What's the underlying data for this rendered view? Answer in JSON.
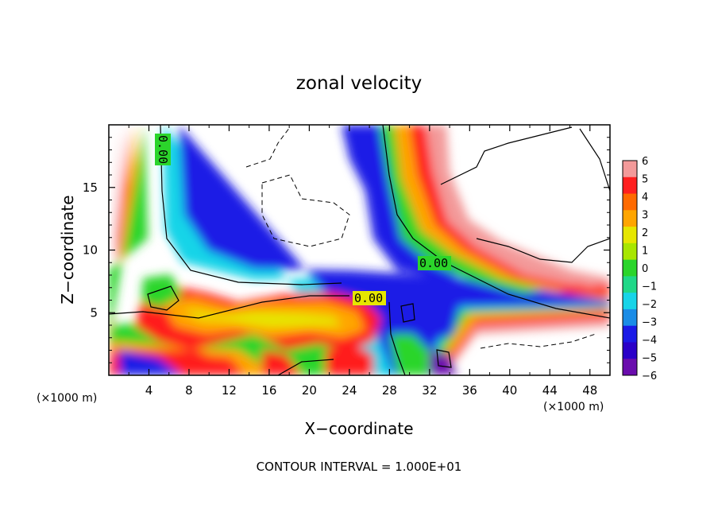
{
  "chart_data": {
    "type": "heatmap",
    "title": "zonal velocity",
    "xlabel": "X−coordinate",
    "ylabel": "Z−coordinate",
    "x_unit": "(×1000 m)",
    "y_unit": "(×1000 m)",
    "xlim": [
      0,
      50
    ],
    "ylim": [
      0,
      20
    ],
    "x_ticks": [
      "4",
      "8",
      "12",
      "16",
      "20",
      "24",
      "28",
      "32",
      "36",
      "40",
      "44",
      "48"
    ],
    "y_ticks": [
      "5",
      "10",
      "15"
    ],
    "colorbar": {
      "ticks": [
        "6",
        "5",
        "4",
        "3",
        "2",
        "1",
        "0",
        "−1",
        "−2",
        "−3",
        "−4",
        "−5",
        "−6"
      ],
      "range": [
        -6,
        6
      ],
      "position": "right"
    },
    "contour_labels": [
      "0.00",
      "0.00",
      "0.00"
    ],
    "footer": "CONTOUR INTERVAL = 1.000E+01",
    "grid": false,
    "colors": {
      "purple": "#6a0dad",
      "blue": "#1a1ae6",
      "cyan": "#17d4e8",
      "green": "#2bd52b",
      "yellow": "#e6e600",
      "orange": "#ffa500",
      "red": "#ff1f1f",
      "pink": "#f39a9a"
    }
  }
}
